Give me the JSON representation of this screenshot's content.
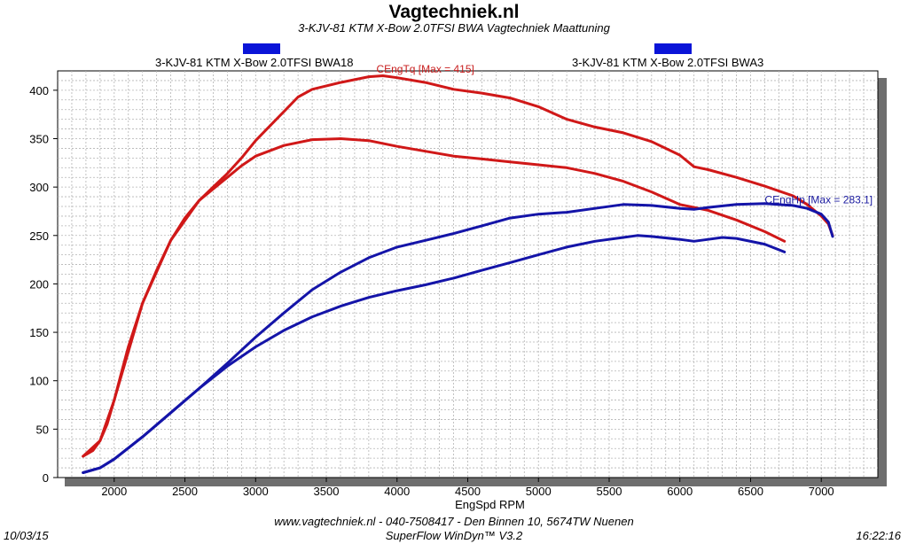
{
  "header": {
    "title": "Vagtechniek.nl",
    "subtitle": "3-KJV-81 KTM X-Bow 2.0TFSI BWA Vagtechniek Maattuning"
  },
  "legend": {
    "left_label": "3-KJV-81 KTM X-Bow 2.0TFSI BWA18",
    "right_label": "3-KJV-81 KTM X-Bow 2.0TFSI BWA3",
    "swatch_color": "#0a14d8"
  },
  "footer": {
    "contact": "www.vagtechniek.nl - 040-7508417 - Den Binnen 10, 5674TW Nuenen",
    "software": "SuperFlow WinDyn™  V3.2",
    "date": "10/03/15",
    "time": "16:22:16"
  },
  "chart_data": {
    "type": "line",
    "xlabel": "EngSpd RPM",
    "ylabel": "",
    "xlim": [
      1600,
      7400
    ],
    "ylim": [
      0,
      420
    ],
    "xticks": [
      2000,
      2500,
      3000,
      3500,
      4000,
      4500,
      5000,
      5500,
      6000,
      6500,
      7000
    ],
    "yticks": [
      0,
      50,
      100,
      150,
      200,
      250,
      300,
      350,
      400
    ],
    "grid": true,
    "annotations": [
      {
        "text": "CEngTq [Max = 415]",
        "x": 4200,
        "y": 418,
        "color": "#c81e1e"
      },
      {
        "text": "CEngHp [Max = 283.1]",
        "x": 6600,
        "y": 283,
        "color": "#1a1aa0"
      }
    ],
    "colors": {
      "torque": "#d01818",
      "power": "#1414a8",
      "grid": "#b4b4b4",
      "shadow": "#6e6e6e"
    },
    "series": [
      {
        "name": "CEngTq",
        "group": "BWA18",
        "points": [
          [
            1780,
            22
          ],
          [
            1850,
            28
          ],
          [
            1900,
            38
          ],
          [
            1950,
            55
          ],
          [
            2000,
            80
          ],
          [
            2050,
            108
          ],
          [
            2100,
            135
          ],
          [
            2200,
            180
          ],
          [
            2300,
            214
          ],
          [
            2400,
            245
          ],
          [
            2500,
            268
          ],
          [
            2600,
            286
          ],
          [
            2700,
            300
          ],
          [
            2800,
            314
          ],
          [
            2900,
            330
          ],
          [
            3000,
            348
          ],
          [
            3100,
            363
          ],
          [
            3200,
            378
          ],
          [
            3300,
            393
          ],
          [
            3400,
            401
          ],
          [
            3600,
            408
          ],
          [
            3800,
            414
          ],
          [
            3900,
            415
          ],
          [
            4000,
            413
          ],
          [
            4200,
            408
          ],
          [
            4400,
            401
          ],
          [
            4600,
            397
          ],
          [
            4800,
            392
          ],
          [
            5000,
            383
          ],
          [
            5200,
            370
          ],
          [
            5400,
            362
          ],
          [
            5600,
            356
          ],
          [
            5800,
            347
          ],
          [
            6000,
            333
          ],
          [
            6100,
            321
          ],
          [
            6200,
            318
          ],
          [
            6400,
            310
          ],
          [
            6600,
            301
          ],
          [
            6800,
            291
          ],
          [
            6900,
            282
          ],
          [
            7000,
            270
          ],
          [
            7050,
            262
          ],
          [
            7080,
            250
          ]
        ]
      },
      {
        "name": "CEngTq",
        "group": "BWA3",
        "points": [
          [
            1780,
            22
          ],
          [
            1900,
            38
          ],
          [
            2000,
            80
          ],
          [
            2200,
            180
          ],
          [
            2400,
            245
          ],
          [
            2600,
            286
          ],
          [
            2800,
            310
          ],
          [
            2900,
            322
          ],
          [
            3000,
            332
          ],
          [
            3200,
            343
          ],
          [
            3400,
            349
          ],
          [
            3600,
            350
          ],
          [
            3800,
            348
          ],
          [
            4000,
            342
          ],
          [
            4200,
            337
          ],
          [
            4400,
            332
          ],
          [
            4600,
            329
          ],
          [
            4800,
            326
          ],
          [
            5000,
            323
          ],
          [
            5200,
            320
          ],
          [
            5400,
            314
          ],
          [
            5600,
            306
          ],
          [
            5800,
            295
          ],
          [
            6000,
            282
          ],
          [
            6200,
            276
          ],
          [
            6400,
            266
          ],
          [
            6600,
            254
          ],
          [
            6740,
            244
          ]
        ]
      },
      {
        "name": "CEngHp",
        "group": "BWA18",
        "points": [
          [
            1780,
            5
          ],
          [
            1900,
            10
          ],
          [
            2000,
            19
          ],
          [
            2200,
            42
          ],
          [
            2400,
            67
          ],
          [
            2600,
            92
          ],
          [
            2800,
            118
          ],
          [
            3000,
            145
          ],
          [
            3200,
            170
          ],
          [
            3400,
            194
          ],
          [
            3600,
            212
          ],
          [
            3800,
            227
          ],
          [
            4000,
            238
          ],
          [
            4200,
            245
          ],
          [
            4400,
            252
          ],
          [
            4600,
            260
          ],
          [
            4800,
            268
          ],
          [
            5000,
            272
          ],
          [
            5200,
            274
          ],
          [
            5400,
            278
          ],
          [
            5600,
            282
          ],
          [
            5800,
            281
          ],
          [
            6000,
            278
          ],
          [
            6100,
            277
          ],
          [
            6200,
            279
          ],
          [
            6400,
            282
          ],
          [
            6600,
            283
          ],
          [
            6800,
            281
          ],
          [
            6900,
            278
          ],
          [
            7000,
            272
          ],
          [
            7050,
            264
          ],
          [
            7080,
            249
          ]
        ]
      },
      {
        "name": "CEngHp",
        "group": "BWA3",
        "points": [
          [
            1780,
            5
          ],
          [
            1900,
            10
          ],
          [
            2000,
            19
          ],
          [
            2200,
            42
          ],
          [
            2400,
            67
          ],
          [
            2600,
            92
          ],
          [
            2800,
            115
          ],
          [
            3000,
            135
          ],
          [
            3200,
            152
          ],
          [
            3400,
            166
          ],
          [
            3600,
            177
          ],
          [
            3800,
            186
          ],
          [
            4000,
            193
          ],
          [
            4200,
            199
          ],
          [
            4400,
            206
          ],
          [
            4600,
            214
          ],
          [
            4800,
            222
          ],
          [
            5000,
            230
          ],
          [
            5200,
            238
          ],
          [
            5400,
            244
          ],
          [
            5600,
            248
          ],
          [
            5700,
            250
          ],
          [
            5800,
            249
          ],
          [
            6000,
            246
          ],
          [
            6100,
            244
          ],
          [
            6200,
            246
          ],
          [
            6300,
            248
          ],
          [
            6400,
            247
          ],
          [
            6600,
            241
          ],
          [
            6740,
            233
          ]
        ]
      }
    ]
  }
}
